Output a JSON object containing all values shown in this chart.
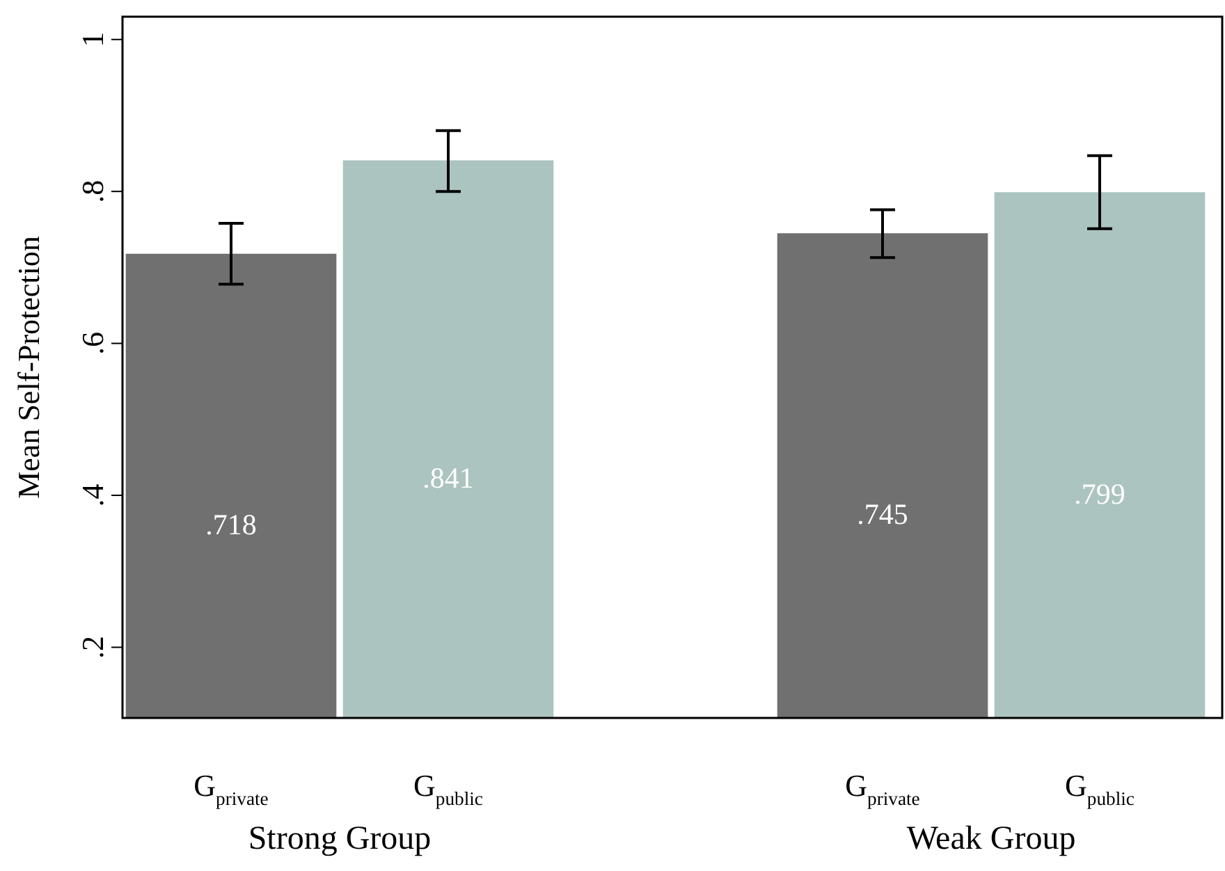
{
  "chart_data": {
    "type": "bar",
    "ylabel": "Mean Self-Protection",
    "categories": [
      "G$_{private}$",
      "G$_{public}$",
      null,
      "G$_{private}$",
      "G$_{public}$"
    ],
    "values": [
      0.718,
      0.841,
      null,
      0.745,
      0.799
    ],
    "colors": [
      "#707070",
      "#acc4bf",
      "#707070",
      "#707070",
      "#acc4bf"
    ],
    "errors": [
      [
        0.678,
        0.758
      ],
      [
        0.8,
        0.88
      ],
      null,
      [
        0.713,
        0.776
      ],
      [
        0.751,
        0.847
      ]
    ],
    "value_labels": [
      ".718",
      ".841",
      null,
      ".745",
      ".799"
    ],
    "ylim": [
      0.107,
      1.03
    ],
    "yticks": [
      {
        "value": 0.2,
        "label": ".2"
      },
      {
        "value": 0.4,
        "label": ".4"
      },
      {
        "value": 0.6,
        "label": ".6"
      },
      {
        "value": 0.8,
        "label": ".8"
      },
      {
        "value": 1,
        "label": "1"
      }
    ],
    "annotations": [
      "Strong Group",
      "Weak Group"
    ],
    "grid": false,
    "legend": false
  }
}
